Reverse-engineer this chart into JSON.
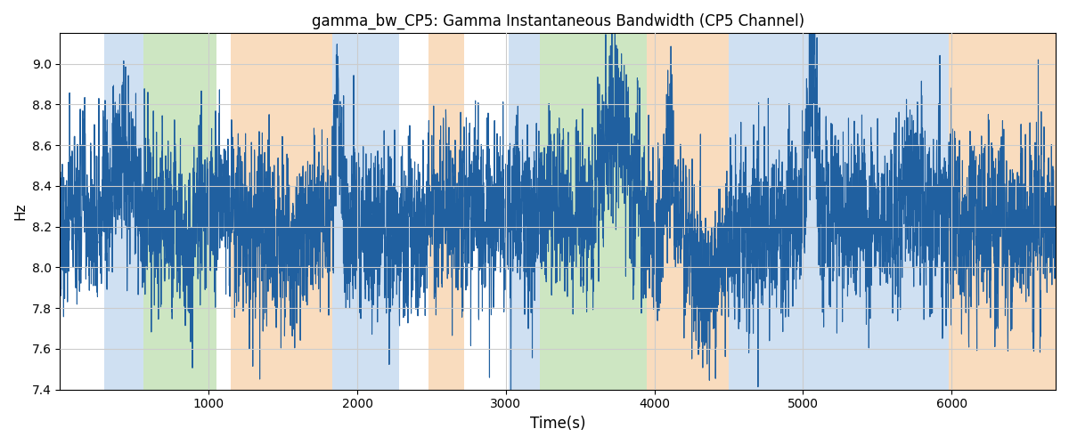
{
  "title": "gamma_bw_CP5: Gamma Instantaneous Bandwidth (CP5 Channel)",
  "xlabel": "Time(s)",
  "ylabel": "Hz",
  "ylim": [
    7.4,
    9.15
  ],
  "xlim": [
    0,
    6700
  ],
  "line_color": "#2060a0",
  "line_width": 0.8,
  "bg_color": "white",
  "grid_color": "#cccccc",
  "bands": [
    {
      "xmin": 300,
      "xmax": 560,
      "color": "#a8c8e8",
      "alpha": 0.55
    },
    {
      "xmin": 560,
      "xmax": 1050,
      "color": "#90c878",
      "alpha": 0.45
    },
    {
      "xmin": 1150,
      "xmax": 1830,
      "color": "#f5c08a",
      "alpha": 0.55
    },
    {
      "xmin": 1830,
      "xmax": 2280,
      "color": "#a8c8e8",
      "alpha": 0.55
    },
    {
      "xmin": 2480,
      "xmax": 2720,
      "color": "#f5c08a",
      "alpha": 0.55
    },
    {
      "xmin": 3020,
      "xmax": 3230,
      "color": "#a8c8e8",
      "alpha": 0.55
    },
    {
      "xmin": 3230,
      "xmax": 3950,
      "color": "#90c878",
      "alpha": 0.45
    },
    {
      "xmin": 3950,
      "xmax": 4500,
      "color": "#f5c08a",
      "alpha": 0.55
    },
    {
      "xmin": 4500,
      "xmax": 5980,
      "color": "#a8c8e8",
      "alpha": 0.55
    },
    {
      "xmin": 5980,
      "xmax": 6700,
      "color": "#f5c08a",
      "alpha": 0.55
    }
  ],
  "seed": 77,
  "n_points": 6700,
  "t_start": 0,
  "t_end": 6699,
  "base_mean": 8.22,
  "base_std": 0.2,
  "title_fontsize": 12
}
